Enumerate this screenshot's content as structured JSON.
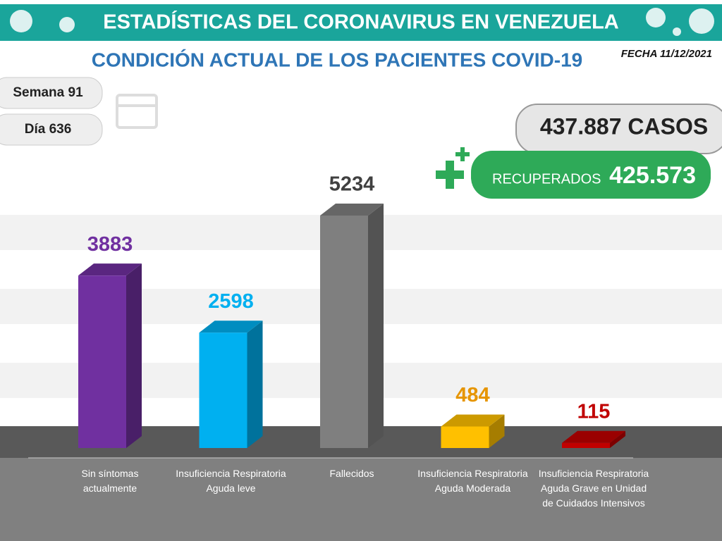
{
  "chart_data": {
    "type": "bar",
    "title": "ESTADÍSTICAS DEL CORONAVIRUS EN VENEZUELA",
    "subtitle": "CONDICIÓN ACTUAL DE LOS PACIENTES COVID-19",
    "date": "FECHA 11/12/2021",
    "week": "Semana 91",
    "day": "Día 636",
    "cases": "437.887 CASOS",
    "recovered_label": "RECUPERADOS",
    "recovered_value": "425.573",
    "categories": [
      "Sin síntomas actualmente",
      "Insuficiencia Respiratoria Aguda leve",
      "Fallecidos",
      "Insuficiencia Respiratoria Aguda Moderada",
      "Insuficiencia Respiratoria Aguda Grave en Unidad de Cuidados Intensivos"
    ],
    "values": [
      3883,
      2598,
      5234,
      484,
      115
    ],
    "colors": [
      "#7030a0",
      "#00b0f0",
      "#7f7f7f",
      "#ffc000",
      "#c00000"
    ],
    "label_colors": [
      "#7030a0",
      "#00b0f0",
      "#404040",
      "#e69500",
      "#c00000"
    ]
  }
}
